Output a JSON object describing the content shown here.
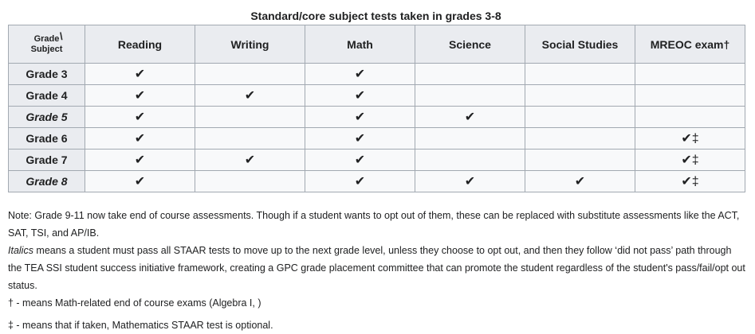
{
  "caption": "Standard/core subject tests taken in grades 3-8",
  "corner": {
    "top": "Grade",
    "slash": "\\",
    "bottom": "Subject"
  },
  "columns": [
    "Reading",
    "Writing",
    "Math",
    "Science",
    "Social Studies",
    "MREOC exam†"
  ],
  "rows": [
    {
      "grade": "Grade 3",
      "italic": false,
      "cells": [
        "✔",
        "",
        "✔",
        "",
        "",
        ""
      ]
    },
    {
      "grade": "Grade 4",
      "italic": false,
      "cells": [
        "✔",
        "✔",
        "✔",
        "",
        "",
        ""
      ]
    },
    {
      "grade": "Grade 5",
      "italic": true,
      "cells": [
        "✔",
        "",
        "✔",
        "✔",
        "",
        ""
      ]
    },
    {
      "grade": "Grade 6",
      "italic": false,
      "cells": [
        "✔",
        "",
        "✔",
        "",
        "",
        "✔‡"
      ]
    },
    {
      "grade": "Grade 7",
      "italic": false,
      "cells": [
        "✔",
        "✔",
        "✔",
        "",
        "",
        "✔‡"
      ]
    },
    {
      "grade": "Grade 8",
      "italic": true,
      "cells": [
        "✔",
        "",
        "✔",
        "✔",
        "✔",
        "✔‡"
      ]
    }
  ],
  "notes": {
    "note1": "Note: Grade 9-11 now take end of course assessments. Though if a student wants to opt out of them, these can be replaced with substitute assessments like the ACT, SAT, TSI, and AP/IB.",
    "italics_word": "Italics",
    "italics_rest": " means a student must pass all STAAR tests to move up to the next grade level, unless they choose to opt out, and then they follow ‘did not pass’ path through the TEA SSI student success initiative framework, creating a GPC grade placement committee that can promote the student regardless of the student's pass/fail/opt out status.",
    "dagger": "† - means Math-related end of course exams (Algebra I, )",
    "ddagger": "‡ - means that if taken, Mathematics STAAR test is optional."
  }
}
